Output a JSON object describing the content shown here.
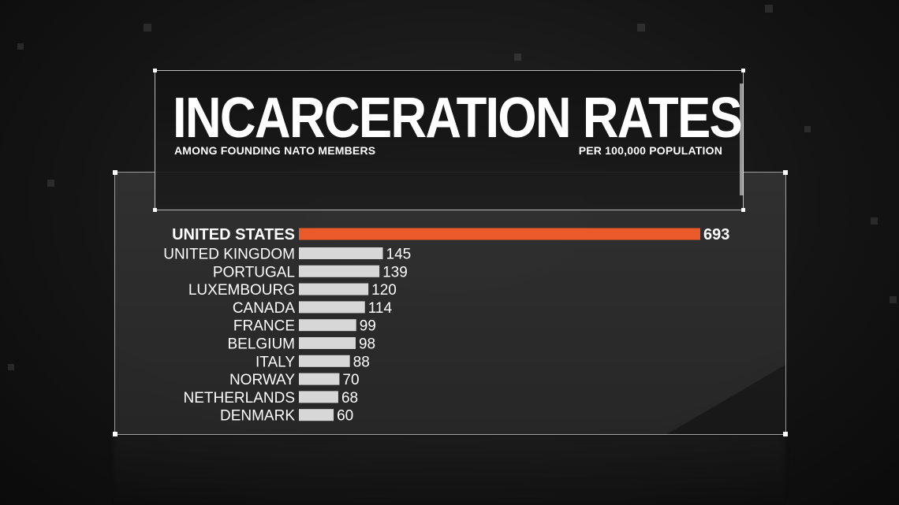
{
  "header": {
    "title": "INCARCERATION RATES",
    "subtitle": "AMONG FOUNDING NATO MEMBERS",
    "unit_note": "PER 100,000 POPULATION"
  },
  "colors": {
    "highlight_bar": "#ea5a2a",
    "bar": "#d7d7d7",
    "text": "#ffffff"
  },
  "chart_data": {
    "type": "bar",
    "orientation": "horizontal",
    "title": "INCARCERATION RATES",
    "subtitle": "AMONG FOUNDING NATO MEMBERS",
    "unit": "PER 100,000 POPULATION",
    "categories": [
      "UNITED STATES",
      "UNITED KINGDOM",
      "PORTUGAL",
      "LUXEMBOURG",
      "CANADA",
      "FRANCE",
      "BELGIUM",
      "ITALY",
      "NORWAY",
      "NETHERLANDS",
      "DENMARK"
    ],
    "values": [
      693,
      145,
      139,
      120,
      114,
      99,
      98,
      88,
      70,
      68,
      60
    ],
    "value_labels": [
      "693",
      "145",
      "139",
      "120",
      "114",
      "99",
      "98",
      "88",
      "70",
      "68",
      "60"
    ],
    "highlighted_category": "UNITED STATES",
    "xlim": [
      0,
      693
    ],
    "grid": false,
    "legend": "none"
  }
}
